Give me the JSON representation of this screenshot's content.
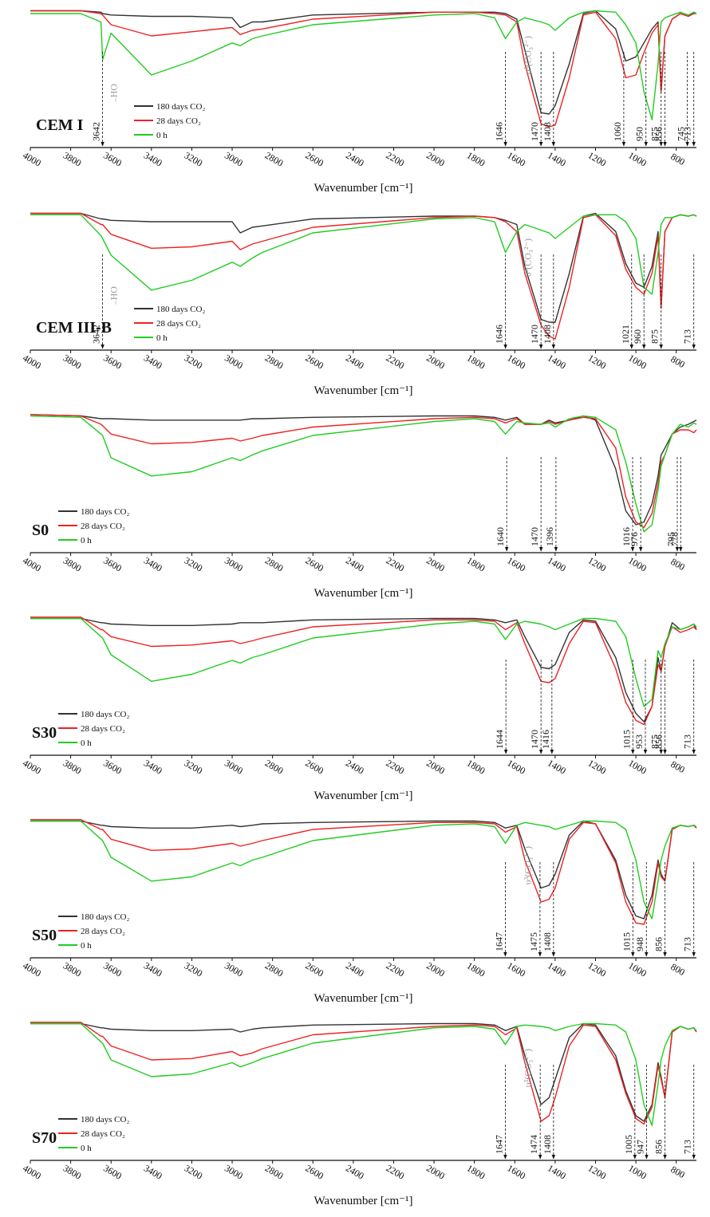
{
  "chart_data": [
    {
      "type": "line",
      "title": "CEM I",
      "xlabel": "Wavenumber [cm⁻¹]",
      "xlim": [
        4000,
        700
      ],
      "ylim": [
        0,
        100
      ],
      "xticks": [
        4000,
        3800,
        3600,
        3400,
        3200,
        3000,
        2800,
        2600,
        2400,
        2200,
        2000,
        1800,
        1600,
        1400,
        1200,
        1000,
        800
      ],
      "x": [
        4000,
        3750,
        3650,
        3642,
        3600,
        3400,
        3200,
        3000,
        2960,
        2900,
        2850,
        2600,
        2000,
        1800,
        1700,
        1646,
        1590,
        1550,
        1470,
        1430,
        1400,
        1330,
        1260,
        1200,
        1100,
        1050,
        1000,
        960,
        920,
        890,
        875,
        856,
        820,
        780,
        740,
        713,
        700
      ],
      "series": [
        {
          "name": "180 days CO₂",
          "color": "#333333",
          "values": [
            98,
            98,
            97,
            96,
            95,
            94,
            94,
            93,
            86,
            90,
            90,
            95,
            97,
            97,
            97,
            96,
            92,
            70,
            25,
            24,
            30,
            60,
            96,
            98,
            85,
            62,
            65,
            75,
            85,
            90,
            40,
            80,
            92,
            96,
            94,
            97,
            96
          ]
        },
        {
          "name": "28 days CO₂",
          "color": "#ee2222",
          "values": [
            98,
            98,
            96,
            95,
            88,
            80,
            83,
            86,
            81,
            84,
            85,
            92,
            97,
            97,
            96,
            95,
            90,
            60,
            17,
            15,
            16,
            50,
            95,
            97,
            78,
            50,
            52,
            68,
            82,
            88,
            40,
            80,
            92,
            96,
            94,
            96,
            96
          ]
        },
        {
          "name": "0 h",
          "color": "#22cc22",
          "values": [
            96,
            96,
            90,
            63,
            82,
            52,
            62,
            75,
            73,
            78,
            80,
            88,
            95,
            96,
            93,
            78,
            90,
            93,
            90,
            88,
            84,
            93,
            97,
            98,
            97,
            88,
            75,
            40,
            20,
            60,
            90,
            93,
            95,
            97,
            95,
            97,
            96
          ]
        }
      ],
      "peaks": [
        3642,
        1646,
        1470,
        1408,
        1060,
        950,
        875,
        856,
        745,
        713
      ],
      "oh_label": "OH⁻",
      "co3_label": "υ³(CO₃²⁻)"
    },
    {
      "type": "line",
      "title": "CEM III-B",
      "xlabel": "Wavenumber [cm⁻¹]",
      "xlim": [
        4000,
        700
      ],
      "ylim": [
        0,
        100
      ],
      "xticks": [
        4000,
        3800,
        3600,
        3400,
        3200,
        3000,
        2800,
        2600,
        2400,
        2200,
        2000,
        1800,
        1600,
        1400,
        1200,
        1000,
        800
      ],
      "x": [
        4000,
        3750,
        3650,
        3642,
        3600,
        3400,
        3200,
        3000,
        2960,
        2900,
        2850,
        2600,
        2000,
        1800,
        1700,
        1646,
        1590,
        1550,
        1470,
        1430,
        1400,
        1330,
        1260,
        1200,
        1100,
        1050,
        1000,
        960,
        920,
        890,
        875,
        856,
        820,
        780,
        740,
        713,
        700
      ],
      "series": [
        {
          "name": "180 days CO₂",
          "color": "#333333",
          "values": [
            98,
            98,
            94,
            94,
            93,
            92,
            92,
            92,
            84,
            88,
            89,
            94,
            96,
            96,
            95,
            93,
            90,
            60,
            22,
            20,
            20,
            55,
            96,
            98,
            85,
            62,
            48,
            45,
            60,
            85,
            30,
            85,
            95,
            97,
            96,
            97,
            96
          ]
        },
        {
          "name": "28 days CO₂",
          "color": "#ee2222",
          "values": [
            98,
            98,
            90,
            90,
            83,
            73,
            74,
            78,
            72,
            76,
            78,
            88,
            95,
            96,
            95,
            92,
            85,
            55,
            18,
            10,
            8,
            45,
            95,
            97,
            82,
            58,
            45,
            40,
            55,
            82,
            30,
            85,
            95,
            97,
            96,
            97,
            96
          ]
        },
        {
          "name": "0 h",
          "color": "#22cc22",
          "values": [
            97,
            97,
            82,
            80,
            68,
            43,
            50,
            63,
            60,
            66,
            70,
            84,
            94,
            95,
            92,
            70,
            85,
            90,
            86,
            84,
            80,
            88,
            96,
            97,
            97,
            92,
            80,
            45,
            40,
            70,
            90,
            95,
            95,
            97,
            96,
            97,
            96
          ]
        }
      ],
      "peaks": [
        3642,
        1646,
        1470,
        1408,
        1021,
        960,
        875,
        713
      ],
      "oh_label": "OH⁻",
      "co3_label": "υ³(CO₃²⁻)"
    },
    {
      "type": "line",
      "title": "S0",
      "xlabel": "Wavenumber [cm⁻¹]",
      "xlim": [
        4000,
        700
      ],
      "ylim": [
        0,
        100
      ],
      "xticks": [
        4000,
        3800,
        3600,
        3400,
        3200,
        3000,
        2800,
        2600,
        2400,
        2200,
        2000,
        1800,
        1600,
        1400,
        1200,
        1000,
        800
      ],
      "x": [
        4000,
        3750,
        3650,
        3642,
        3600,
        3400,
        3200,
        3000,
        2960,
        2900,
        2850,
        2600,
        2000,
        1800,
        1700,
        1646,
        1590,
        1550,
        1470,
        1430,
        1400,
        1330,
        1260,
        1200,
        1100,
        1050,
        1000,
        960,
        920,
        890,
        875,
        856,
        820,
        780,
        740,
        713,
        700
      ],
      "series": [
        {
          "name": "180 days CO₂",
          "color": "#333333",
          "values": [
            99,
            98,
            96,
            96,
            96,
            95,
            95,
            95,
            95,
            96,
            96,
            97,
            98,
            98,
            97,
            95,
            97,
            92,
            92,
            95,
            93,
            95,
            98,
            95,
            60,
            30,
            20,
            22,
            35,
            55,
            70,
            75,
            85,
            90,
            92,
            94,
            95
          ]
        },
        {
          "name": "28 days CO₂",
          "color": "#ee2222",
          "values": [
            99,
            98,
            92,
            91,
            85,
            78,
            79,
            82,
            80,
            82,
            84,
            90,
            96,
            97,
            96,
            93,
            96,
            92,
            92,
            94,
            92,
            95,
            97,
            96,
            75,
            40,
            22,
            18,
            28,
            50,
            65,
            70,
            85,
            88,
            88,
            86,
            88
          ]
        },
        {
          "name": "0 h",
          "color": "#22cc22",
          "values": [
            98,
            97,
            85,
            84,
            68,
            55,
            58,
            68,
            66,
            70,
            73,
            84,
            94,
            96,
            94,
            85,
            94,
            93,
            92,
            93,
            90,
            96,
            98,
            97,
            88,
            65,
            35,
            15,
            20,
            45,
            62,
            70,
            85,
            92,
            90,
            93,
            92
          ]
        }
      ],
      "peaks": [
        1640,
        1470,
        1396,
        1016,
        976,
        795,
        778
      ]
    },
    {
      "type": "line",
      "title": "S30",
      "xlabel": "Wavenumber [cm⁻¹]",
      "xlim": [
        4000,
        700
      ],
      "ylim": [
        0,
        100
      ],
      "xticks": [
        4000,
        3800,
        3600,
        3400,
        3200,
        3000,
        2800,
        2600,
        2400,
        2200,
        2000,
        1800,
        1600,
        1400,
        1200,
        1000,
        800
      ],
      "x": [
        4000,
        3750,
        3650,
        3642,
        3600,
        3400,
        3200,
        3000,
        2960,
        2900,
        2850,
        2600,
        2000,
        1800,
        1700,
        1646,
        1590,
        1550,
        1470,
        1430,
        1400,
        1330,
        1260,
        1200,
        1100,
        1050,
        1000,
        960,
        920,
        890,
        875,
        856,
        820,
        780,
        740,
        713,
        700
      ],
      "series": [
        {
          "name": "180 days CO₂",
          "color": "#333333",
          "values": [
            98,
            98,
            95,
            95,
            94,
            93,
            93,
            94,
            95,
            95,
            95,
            97,
            98,
            98,
            97,
            95,
            97,
            85,
            63,
            62,
            65,
            88,
            97,
            96,
            70,
            45,
            30,
            24,
            35,
            70,
            60,
            78,
            95,
            90,
            92,
            94,
            90
          ]
        },
        {
          "name": "28 days CO₂",
          "color": "#ee2222",
          "values": [
            99,
            99,
            90,
            90,
            85,
            78,
            79,
            82,
            80,
            82,
            84,
            92,
            97,
            97,
            96,
            90,
            95,
            80,
            53,
            52,
            55,
            80,
            96,
            95,
            62,
            38,
            25,
            22,
            35,
            65,
            60,
            78,
            92,
            88,
            90,
            92,
            90
          ]
        },
        {
          "name": "0 h",
          "color": "#22cc22",
          "values": [
            98,
            98,
            85,
            84,
            72,
            53,
            58,
            68,
            66,
            70,
            72,
            84,
            94,
            96,
            94,
            83,
            94,
            96,
            94,
            92,
            90,
            94,
            98,
            98,
            96,
            85,
            55,
            35,
            40,
            75,
            70,
            80,
            92,
            90,
            92,
            94,
            92
          ]
        }
      ],
      "peaks": [
        1644,
        1470,
        1416,
        1015,
        953,
        875,
        856,
        713
      ]
    },
    {
      "type": "line",
      "title": "S50",
      "xlabel": "Wavenumber [cm⁻¹]",
      "xlim": [
        4000,
        700
      ],
      "ylim": [
        0,
        100
      ],
      "xticks": [
        4000,
        3800,
        3600,
        3400,
        3200,
        3000,
        2800,
        2600,
        2400,
        2200,
        2000,
        1800,
        1600,
        1400,
        1200,
        1000,
        800
      ],
      "x": [
        4000,
        3750,
        3650,
        3642,
        3600,
        3400,
        3200,
        3000,
        2960,
        2900,
        2850,
        2600,
        2000,
        1800,
        1700,
        1646,
        1590,
        1550,
        1470,
        1430,
        1400,
        1330,
        1260,
        1200,
        1100,
        1050,
        1000,
        960,
        920,
        890,
        875,
        856,
        820,
        780,
        740,
        713,
        700
      ],
      "series": [
        {
          "name": "180 days CO₂",
          "color": "#333333",
          "values": [
            98,
            98,
            95,
            95,
            94,
            93,
            93,
            95,
            94,
            95,
            96,
            97,
            98,
            98,
            97,
            93,
            95,
            78,
            50,
            52,
            60,
            88,
            98,
            96,
            70,
            45,
            30,
            28,
            45,
            70,
            60,
            55,
            92,
            95,
            94,
            95,
            93
          ]
        },
        {
          "name": "28 days CO₂",
          "color": "#ee2222",
          "values": [
            99,
            99,
            92,
            92,
            85,
            77,
            78,
            82,
            80,
            82,
            84,
            92,
            97,
            97,
            96,
            90,
            94,
            70,
            40,
            42,
            50,
            85,
            97,
            96,
            68,
            40,
            25,
            24,
            40,
            68,
            58,
            55,
            92,
            95,
            94,
            95,
            93
          ]
        },
        {
          "name": "0 h",
          "color": "#22cc22",
          "values": [
            98,
            98,
            85,
            84,
            72,
            55,
            58,
            68,
            66,
            70,
            72,
            84,
            95,
            96,
            94,
            82,
            95,
            97,
            95,
            94,
            92,
            95,
            98,
            98,
            97,
            92,
            70,
            40,
            28,
            55,
            70,
            80,
            93,
            95,
            94,
            95,
            94
          ]
        }
      ],
      "peaks": [
        1647,
        1475,
        1408,
        1015,
        948,
        856,
        713
      ],
      "co3_label": "υ³(CO₃²⁻)"
    },
    {
      "type": "line",
      "title": "S70",
      "xlabel": "Wavenumber [cm⁻¹]",
      "xlim": [
        4000,
        700
      ],
      "ylim": [
        0,
        100
      ],
      "xticks": [
        4000,
        3800,
        3600,
        3400,
        3200,
        3000,
        2800,
        2600,
        2400,
        2200,
        2000,
        1800,
        1600,
        1400,
        1200,
        1000,
        800
      ],
      "x": [
        4000,
        3750,
        3650,
        3642,
        3600,
        3400,
        3200,
        3000,
        2960,
        2900,
        2850,
        2600,
        2000,
        1800,
        1700,
        1646,
        1590,
        1550,
        1470,
        1430,
        1400,
        1330,
        1260,
        1200,
        1100,
        1050,
        1000,
        960,
        920,
        890,
        875,
        856,
        820,
        780,
        740,
        713,
        700
      ],
      "series": [
        {
          "name": "180 days CO₂",
          "color": "#333333",
          "values": [
            98,
            98,
            95,
            95,
            94,
            93,
            93,
            94,
            92,
            94,
            95,
            97,
            98,
            98,
            97,
            93,
            96,
            75,
            40,
            45,
            58,
            88,
            98,
            97,
            75,
            50,
            32,
            28,
            40,
            70,
            60,
            45,
            92,
            96,
            94,
            95,
            92
          ]
        },
        {
          "name": "28 days CO₂",
          "color": "#ee2222",
          "values": [
            99,
            99,
            89,
            89,
            82,
            72,
            73,
            78,
            75,
            77,
            80,
            90,
            96,
            97,
            96,
            90,
            95,
            70,
            28,
            32,
            45,
            82,
            97,
            96,
            72,
            48,
            30,
            26,
            38,
            68,
            58,
            45,
            92,
            96,
            94,
            95,
            92
          ]
        },
        {
          "name": "0 h",
          "color": "#22cc22",
          "values": [
            98,
            98,
            85,
            84,
            72,
            60,
            62,
            70,
            67,
            70,
            73,
            84,
            95,
            96,
            94,
            83,
            96,
            97,
            96,
            95,
            93,
            96,
            98,
            98,
            97,
            92,
            72,
            40,
            25,
            55,
            72,
            82,
            93,
            96,
            94,
            95,
            93
          ]
        }
      ],
      "peaks": [
        1647,
        1474,
        1408,
        1005,
        947,
        856,
        713
      ],
      "co3_label": "υ³(CO₃²⁻)"
    }
  ]
}
